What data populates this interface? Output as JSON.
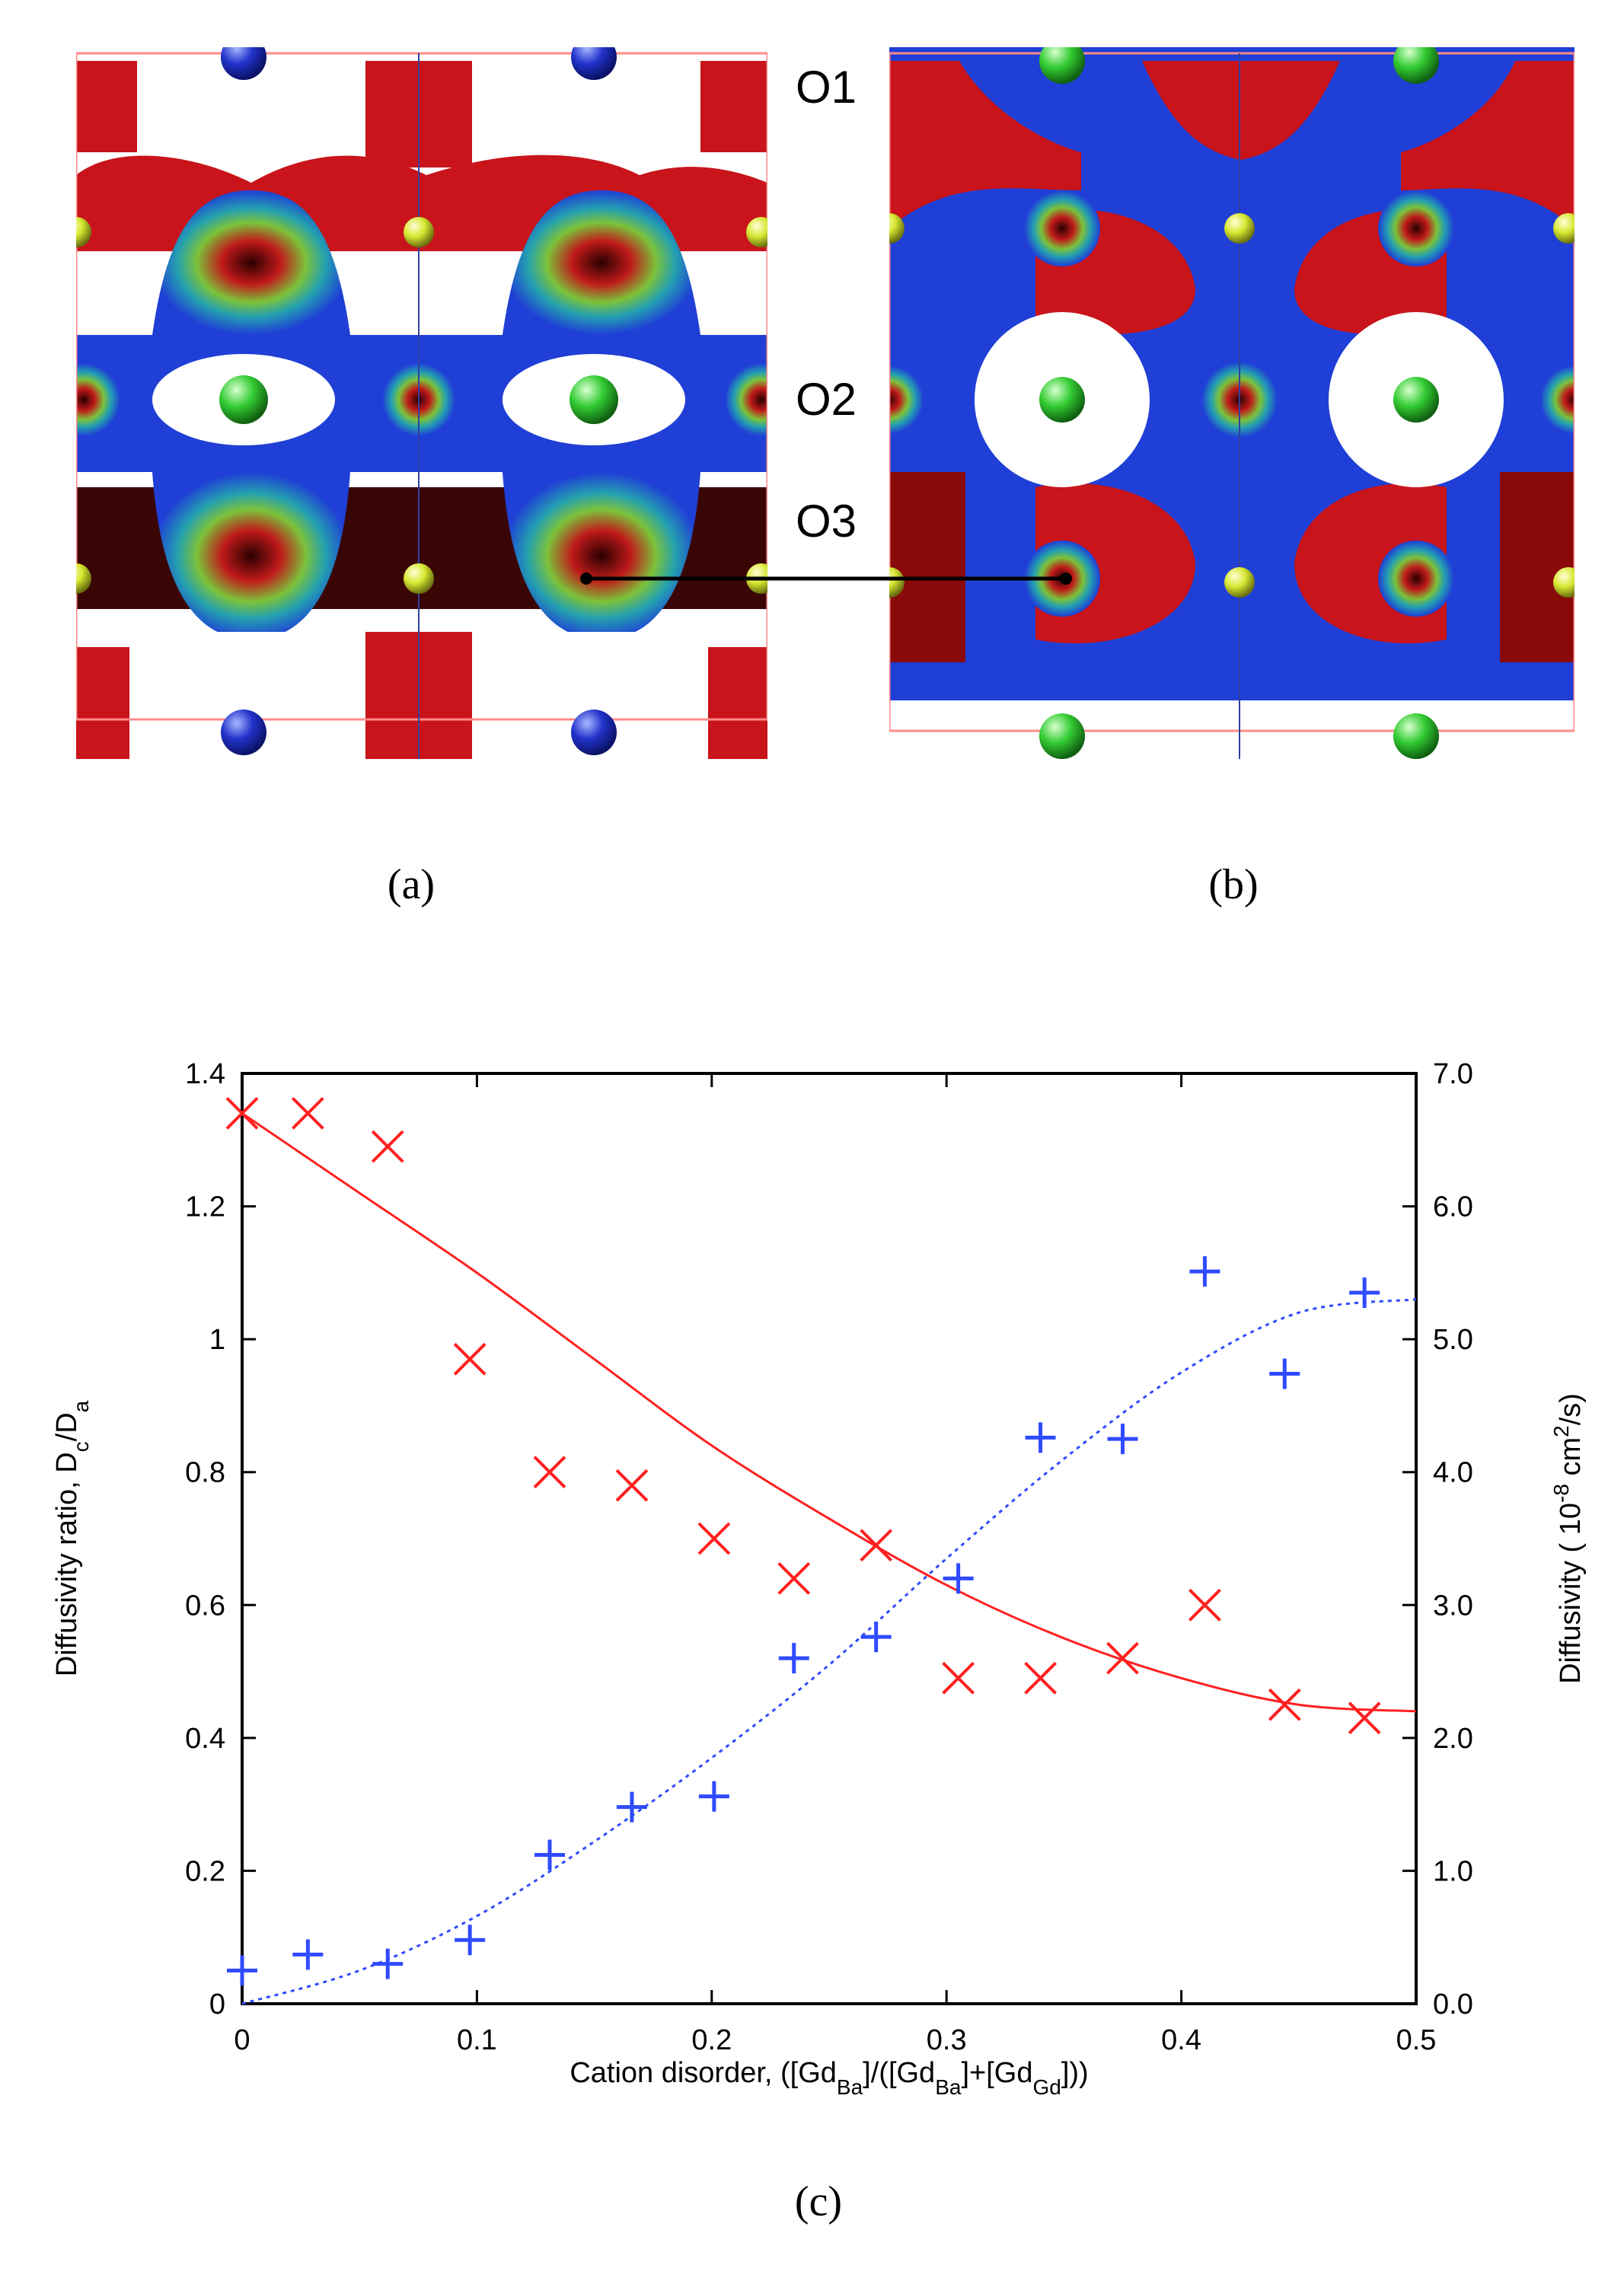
{
  "panels": {
    "a": {
      "caption": "(a)"
    },
    "b": {
      "caption": "(b)"
    },
    "c": {
      "caption": "(c)"
    }
  },
  "site_labels": [
    "O1",
    "O2",
    "O3"
  ],
  "colors": {
    "density_red": "#cc1111",
    "density_blue": "#1f3fd6",
    "density_green": "#3fbf3f",
    "ba_atom": "#2233cc",
    "gd_atom": "#33cc33",
    "o_atom": "#d8e832",
    "cell_edge": "#ff8a8a",
    "ratio_series": "#ff2020",
    "diffusivity_series": "#2f4bff"
  },
  "chart_data": {
    "type": "scatter",
    "xlabel_parts": {
      "lead": "Cation disorder, ([Gd",
      "sub1": "Ba",
      "mid1": "]/([Gd",
      "sub2": "Ba",
      "mid2": "]+[Gd",
      "sub3": "Gd",
      "tail": "]))"
    },
    "ylabel_left_parts": {
      "lead": "Diffusivity ratio, D",
      "sub1": "c",
      "mid": "/D",
      "sub2": "a"
    },
    "ylabel_right_parts": {
      "lead": "Diffusivity ( 10",
      "sup1": "-8",
      "mid": " cm",
      "sup2": "2",
      "tail": "/s)"
    },
    "xlim": [
      0,
      0.5
    ],
    "ylim_left": [
      0,
      1.4
    ],
    "ylim_right": [
      0,
      7.0
    ],
    "x_ticks": [
      "0",
      "0.1",
      "0.2",
      "0.3",
      "0.4",
      "0.5"
    ],
    "y_left_ticks": [
      "0",
      "0.2",
      "0.4",
      "0.6",
      "0.8",
      "1",
      "1.2",
      "1.4"
    ],
    "y_right_ticks": [
      "0.0",
      "1.0",
      "2.0",
      "3.0",
      "4.0",
      "5.0",
      "6.0",
      "7.0"
    ],
    "series": [
      {
        "name": "Diffusivity ratio Dc/Da",
        "axis": "left",
        "marker": "x",
        "color": "#ff2020",
        "x": [
          0.0,
          0.028,
          0.062,
          0.097,
          0.131,
          0.166,
          0.201,
          0.235,
          0.27,
          0.305,
          0.34,
          0.375,
          0.41,
          0.444,
          0.478
        ],
        "y": [
          1.34,
          1.34,
          1.29,
          0.97,
          0.8,
          0.78,
          0.7,
          0.64,
          0.69,
          0.49,
          0.49,
          0.52,
          0.6,
          0.45,
          0.43
        ],
        "fit": {
          "style": "solid",
          "x": [
            0.0,
            0.05,
            0.1,
            0.15,
            0.2,
            0.25,
            0.3,
            0.35,
            0.4,
            0.45,
            0.5
          ],
          "y": [
            1.34,
            1.22,
            1.1,
            0.97,
            0.84,
            0.73,
            0.63,
            0.55,
            0.49,
            0.45,
            0.44
          ]
        }
      },
      {
        "name": "Diffusivity",
        "axis": "right",
        "marker": "+",
        "color": "#2f4bff",
        "x": [
          0.0,
          0.028,
          0.062,
          0.097,
          0.131,
          0.166,
          0.201,
          0.235,
          0.27,
          0.305,
          0.34,
          0.375,
          0.41,
          0.444,
          0.478
        ],
        "y": [
          0.25,
          0.37,
          0.3,
          0.48,
          1.12,
          1.48,
          1.56,
          2.6,
          2.76,
          3.2,
          4.26,
          4.25,
          5.51,
          4.74,
          5.35
        ],
        "fit": {
          "style": "dotted",
          "x": [
            0.0,
            0.05,
            0.1,
            0.15,
            0.2,
            0.25,
            0.3,
            0.35,
            0.4,
            0.45,
            0.5
          ],
          "y": [
            0.0,
            0.25,
            0.66,
            1.22,
            1.85,
            2.55,
            3.35,
            4.1,
            4.75,
            5.2,
            5.3
          ]
        }
      }
    ]
  }
}
